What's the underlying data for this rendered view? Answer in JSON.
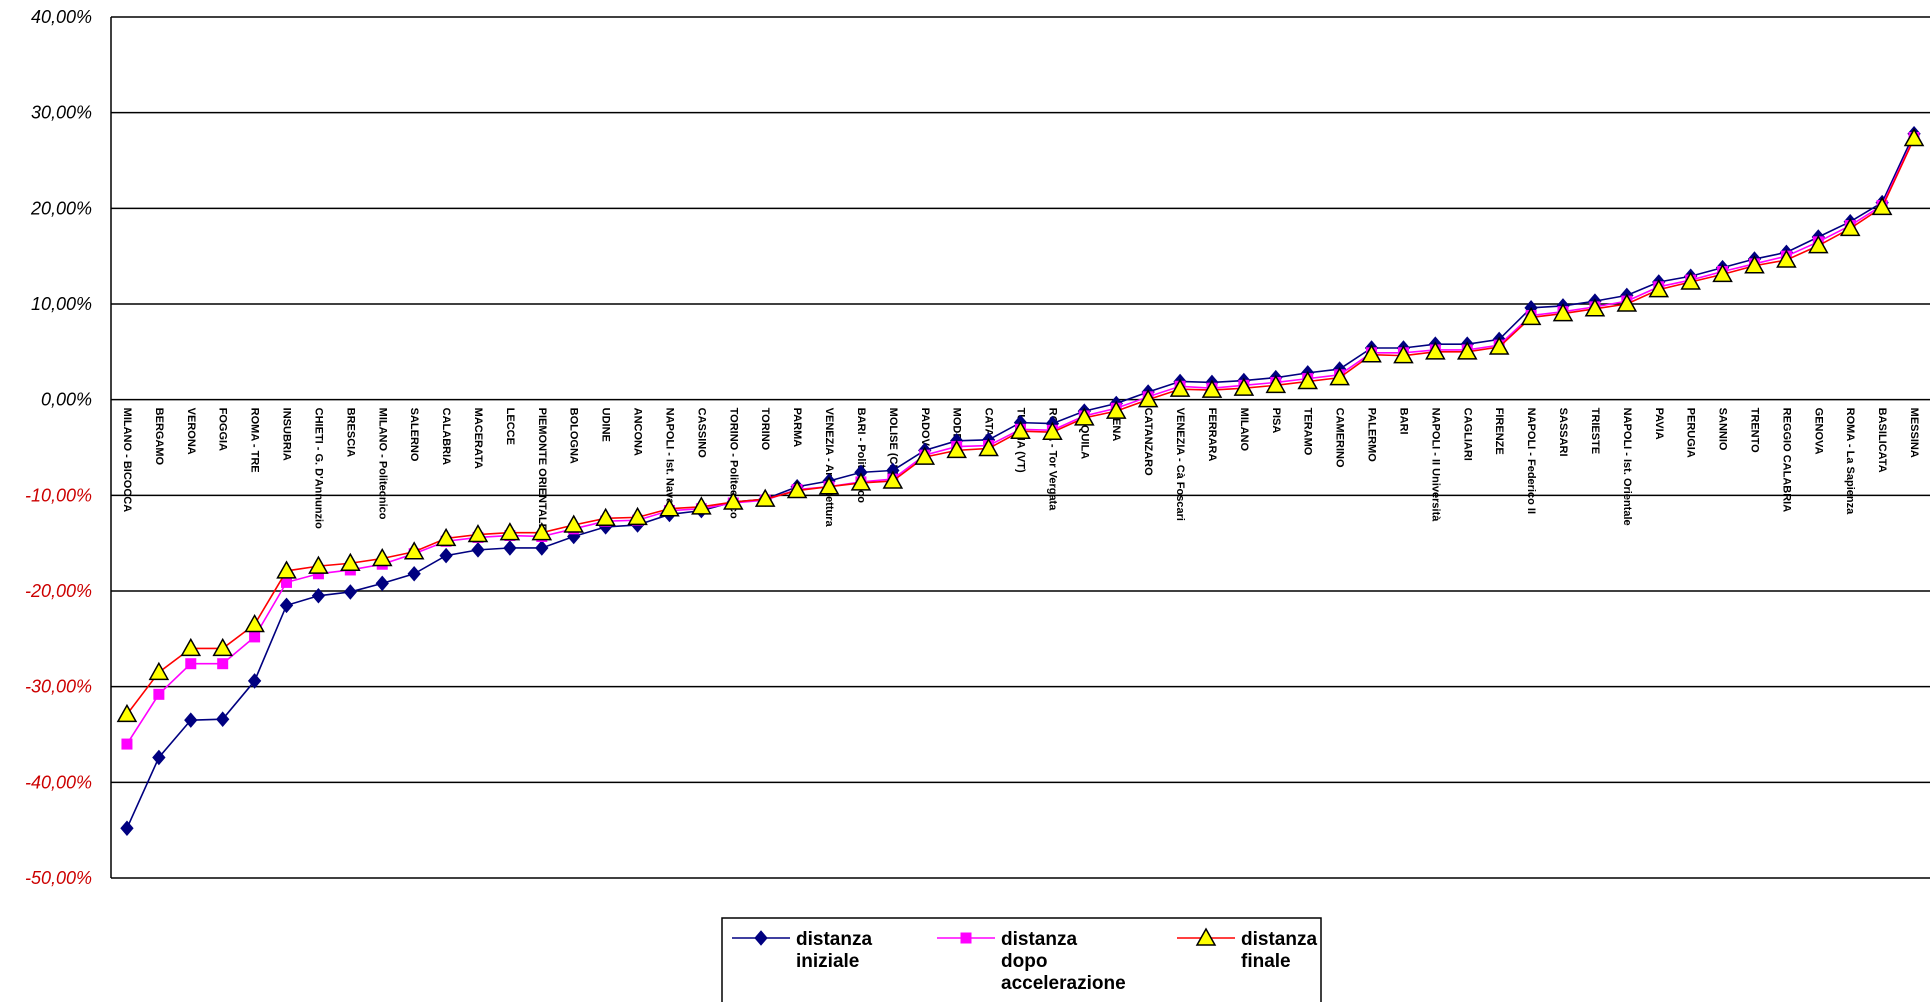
{
  "chart_data": {
    "type": "line",
    "title": "",
    "xlabel": "",
    "ylabel": "",
    "ylim": [
      -50,
      40
    ],
    "y_ticks": [
      "40,00%",
      "30,00%",
      "20,00%",
      "10,00%",
      "0,00%",
      "-10,00%",
      "-20,00%",
      "-30,00%",
      "-40,00%",
      "-50,00%"
    ],
    "y_tick_values": [
      40,
      30,
      20,
      10,
      0,
      -10,
      -20,
      -30,
      -40,
      -50
    ],
    "y_tick_colors": {
      "positive": "#000000",
      "negative": "#cc0000"
    },
    "grid": "horizontal",
    "legend_position": "bottom",
    "categories": [
      "MILANO - BICOCCA",
      "BERGAMO",
      "VERONA",
      "FOGGIA",
      "ROMA - TRE",
      "INSUBRIA",
      "CHIETI - G. D'Annunzio",
      "BRESCIA",
      "MILANO - Politecnico",
      "SALERNO",
      "CALABRIA",
      "MACERATA",
      "LECCE",
      "PIEMONTE ORIENTALE",
      "BOLOGNA",
      "UDINE",
      "ANCONA",
      "NAPOLI - Ist. Navale",
      "CASSINO",
      "TORINO - Politecnico",
      "TORINO",
      "PARMA",
      "VENEZIA - Architettura",
      "BARI - Politecnico",
      "MOLISE (CB)",
      "PADOVA",
      "MODENA",
      "CATANIA",
      "TUSCIA (VT)",
      "ROMA - Tor Vergata",
      "L'AQUILA",
      "SIENA",
      "CATANZARO",
      "VENEZIA - Cà Foscari",
      "FERRARA",
      "MILANO",
      "PISA",
      "TERAMO",
      "CAMERINO",
      "PALERMO",
      "BARI",
      "NAPOLI - II Università",
      "CAGLIARI",
      "FIRENZE",
      "NAPOLI - Federico II",
      "SASSARI",
      "TRIESTE",
      "NAPOLI - Ist. Orientale",
      "PAVIA",
      "PERUGIA",
      "SANNIO",
      "TRENTO",
      "REGGIO CALABRIA",
      "GENOVA",
      "ROMA - La Sapienza",
      "BASILICATA",
      "MESSINA"
    ],
    "series": [
      {
        "name": "distanza iniziale",
        "color": "#000080",
        "marker": "diamond",
        "values": [
          -44.8,
          -37.4,
          -33.5,
          -33.4,
          -29.4,
          -21.5,
          -20.5,
          -20.1,
          -19.2,
          -18.2,
          -16.3,
          -15.7,
          -15.5,
          -15.5,
          -14.3,
          -13.3,
          -13.1,
          -12.0,
          -11.6,
          -10.7,
          -10.4,
          -9.1,
          -8.5,
          -7.6,
          -7.4,
          -5.3,
          -4.3,
          -4.2,
          -2.4,
          -2.5,
          -1.2,
          -0.4,
          0.8,
          1.9,
          1.8,
          2.0,
          2.3,
          2.8,
          3.2,
          5.4,
          5.4,
          5.8,
          5.8,
          6.3,
          9.6,
          9.8,
          10.3,
          10.9,
          12.3,
          12.9,
          13.8,
          14.7,
          15.4,
          17.0,
          18.6,
          20.6,
          27.8
        ]
      },
      {
        "name": "distanza dopo accelerazione",
        "color": "#ff00ff",
        "marker": "square",
        "values": [
          -36.0,
          -30.8,
          -27.6,
          -27.6,
          -24.8,
          -19.1,
          -18.2,
          -17.8,
          -17.2,
          -16.1,
          -14.8,
          -14.4,
          -14.2,
          -14.3,
          -13.5,
          -12.7,
          -12.6,
          -11.6,
          -11.4,
          -10.8,
          -10.5,
          -9.4,
          -9.1,
          -8.6,
          -8.3,
          -5.8,
          -4.9,
          -4.8,
          -3.1,
          -3.2,
          -1.7,
          -0.9,
          0.3,
          1.4,
          1.2,
          1.5,
          1.8,
          2.2,
          2.6,
          4.9,
          4.9,
          5.2,
          5.2,
          5.7,
          8.8,
          9.2,
          9.7,
          10.3,
          11.8,
          12.5,
          13.4,
          14.2,
          15.0,
          16.5,
          18.2,
          20.3,
          27.4
        ]
      },
      {
        "name": "distanza finale",
        "color": "#ff0000",
        "marker": "triangle",
        "marker_fill": "#ffff00",
        "values": [
          -32.9,
          -28.5,
          -26.0,
          -26.0,
          -23.5,
          -17.9,
          -17.4,
          -17.1,
          -16.6,
          -15.9,
          -14.5,
          -14.1,
          -13.9,
          -13.9,
          -13.1,
          -12.4,
          -12.3,
          -11.4,
          -11.2,
          -10.7,
          -10.4,
          -9.5,
          -9.1,
          -8.7,
          -8.5,
          -6.0,
          -5.3,
          -5.1,
          -3.3,
          -3.4,
          -1.9,
          -1.2,
          0.0,
          1.1,
          1.0,
          1.2,
          1.5,
          1.9,
          2.3,
          4.7,
          4.6,
          5.0,
          5.0,
          5.5,
          8.6,
          9.0,
          9.5,
          10.0,
          11.5,
          12.3,
          13.1,
          14.0,
          14.6,
          16.1,
          17.9,
          20.1,
          27.3
        ]
      }
    ]
  }
}
